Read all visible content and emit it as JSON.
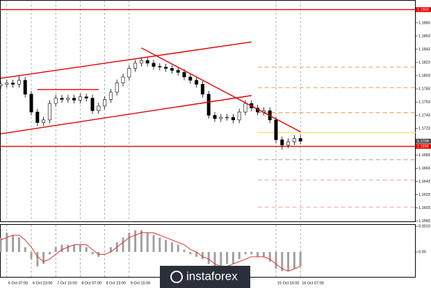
{
  "chart_data": {
    "type": "candlestick",
    "categories": [
      null,
      "6 Oct 07:00",
      null,
      null,
      null,
      "6 Oct 23:00",
      null,
      null,
      null,
      "7 Oct 15:00",
      null,
      null,
      null,
      "8 Oct 07:00",
      null,
      null,
      null,
      "8 Oct 23:00",
      null,
      null,
      null,
      "9 Oct 15:00",
      null,
      null,
      null,
      null,
      null,
      null,
      null,
      null,
      null,
      null,
      null,
      null,
      null,
      null,
      null,
      null,
      null,
      null,
      null,
      null,
      null,
      null,
      null,
      "15 Oct 15:00",
      null,
      null,
      null,
      "16 Oct 07:00"
    ],
    "open": [
      1.1788,
      1.179,
      1.1792,
      1.179,
      1.1796,
      1.1775,
      1.1748,
      1.1732,
      1.1736,
      1.1761,
      1.1769,
      1.1767,
      1.1769,
      1.1766,
      1.1771,
      1.1769,
      1.175,
      1.1757,
      1.1767,
      1.1778,
      1.1792,
      1.1801,
      1.1814,
      1.1822,
      1.1826,
      1.1822,
      1.1817,
      1.1816,
      1.1814,
      1.1811,
      1.1808,
      1.1801,
      1.1796,
      1.179,
      1.1775,
      1.1743,
      1.1738,
      1.174,
      1.174,
      1.1736,
      1.1748,
      1.1761,
      1.1754,
      1.1748,
      1.175,
      1.1736,
      1.1706,
      1.1698,
      1.1703,
      1.1708
    ],
    "high": [
      1.1795,
      1.1797,
      1.1797,
      1.1804,
      1.1801,
      1.178,
      1.1753,
      1.1741,
      1.1766,
      1.1774,
      1.1774,
      1.1774,
      1.1774,
      1.1776,
      1.1776,
      1.1774,
      1.1762,
      1.1772,
      1.1783,
      1.1797,
      1.1806,
      1.1819,
      1.1827,
      1.1831,
      1.1831,
      1.1827,
      1.1822,
      1.1821,
      1.1819,
      1.1816,
      1.1813,
      1.1806,
      1.1801,
      1.1795,
      1.178,
      1.1748,
      1.1745,
      1.1745,
      1.1745,
      1.1753,
      1.1766,
      1.1766,
      1.1759,
      1.1755,
      1.1755,
      1.1741,
      1.1711,
      1.1708,
      1.1713,
      1.1713
    ],
    "low": [
      1.1783,
      1.1785,
      1.1785,
      1.1785,
      1.177,
      1.1743,
      1.1727,
      1.1727,
      1.1731,
      1.1756,
      1.1762,
      1.1762,
      1.1761,
      1.1761,
      1.1764,
      1.1745,
      1.1745,
      1.1752,
      1.1762,
      1.1773,
      1.1787,
      1.1796,
      1.1809,
      1.1817,
      1.1817,
      1.1812,
      1.1811,
      1.1809,
      1.1806,
      1.1803,
      1.1796,
      1.1791,
      1.1785,
      1.177,
      1.1738,
      1.1733,
      1.1733,
      1.1735,
      1.1731,
      1.1731,
      1.1743,
      1.1749,
      1.1743,
      1.1743,
      1.1731,
      1.1701,
      1.1691,
      1.1693,
      1.1698,
      1.1699
    ],
    "close": [
      1.179,
      1.1792,
      1.179,
      1.1796,
      1.1775,
      1.1748,
      1.1732,
      1.1736,
      1.1761,
      1.1769,
      1.1767,
      1.1769,
      1.1766,
      1.1771,
      1.1769,
      1.175,
      1.1757,
      1.1767,
      1.1778,
      1.1792,
      1.1801,
      1.1814,
      1.1822,
      1.1826,
      1.1822,
      1.1817,
      1.1816,
      1.1814,
      1.1811,
      1.1808,
      1.1801,
      1.1796,
      1.179,
      1.1775,
      1.1743,
      1.1738,
      1.174,
      1.174,
      1.1736,
      1.1748,
      1.1761,
      1.1754,
      1.1748,
      1.175,
      1.1736,
      1.1706,
      1.1698,
      1.1703,
      1.1708,
      1.1704
    ],
    "ylim": [
      1.1582,
      1.1917
    ],
    "yticks": [
      1.1883,
      1.1863,
      1.1843,
      1.1823,
      1.1803,
      1.1783,
      1.1763,
      1.1743,
      1.1723,
      1.1683,
      1.1663,
      1.1643,
      1.1623,
      1.1603,
      1.1583
    ],
    "grid": true,
    "levels": [
      {
        "value": 1.1903,
        "color": "#e00000"
      },
      {
        "value": 1.1696,
        "color": "#e00000"
      }
    ],
    "current_price": 1.1704,
    "trendlines": [
      {
        "color": "#e00000",
        "x": [
          0,
          41
        ],
        "y": [
          1.1799,
          1.1854
        ]
      },
      {
        "color": "#e00000",
        "x": [
          0,
          41
        ],
        "y": [
          1.1715,
          1.1773
        ]
      },
      {
        "color": "#e00000",
        "x": [
          23,
          49
        ],
        "y": [
          1.1845,
          1.1718
        ]
      },
      {
        "color": "#e00000",
        "x": [
          6,
          16
        ],
        "y": [
          1.1782,
          1.1782
        ]
      }
    ],
    "pivot_levels": [
      {
        "value": 1.1816,
        "color": "#f4a460"
      },
      {
        "value": 1.1785,
        "color": "#f4a460"
      },
      {
        "value": 1.1747,
        "color": "#f4a460"
      },
      {
        "value": 1.1717,
        "color": "#f2d640"
      },
      {
        "value": 1.1676,
        "color": "#b0b0b0"
      },
      {
        "value": 1.1645,
        "color": "#e8b4b4"
      },
      {
        "value": 1.1604,
        "color": "#e8b4b4"
      }
    ],
    "pivot_start": 42,
    "oscillator": {
      "histogram": [
        0.0006,
        0.0008,
        0.0007,
        0.0006,
        0.0002,
        -0.0003,
        -0.0006,
        -0.0005,
        -0.0001,
        0.0002,
        0.0003,
        0.0003,
        0.0003,
        0.0003,
        0.0002,
        -0.0001,
        -0.0002,
        0.0,
        0.0002,
        0.0004,
        0.0006,
        0.0008,
        0.0009,
        0.0009,
        0.0008,
        0.0007,
        0.0006,
        0.0005,
        0.0004,
        0.0003,
        0.0001,
        -0.0001,
        -0.0002,
        -0.0003,
        -0.0005,
        -0.0006,
        -0.0006,
        -0.0005,
        -0.0005,
        -0.0003,
        -0.0001,
        -0.0001,
        -0.0002,
        -0.0002,
        -0.0004,
        -0.0007,
        -0.0008,
        -0.0008,
        -0.0007,
        -0.0006
      ],
      "histogram_color": "#a0a0a0",
      "signal": [
        0.0005,
        0.0006,
        0.0007,
        0.0007,
        0.0005,
        0.0002,
        -0.0002,
        -0.0004,
        -0.0003,
        -0.0001,
        0.0001,
        0.0002,
        0.0003,
        0.0003,
        0.0003,
        0.0001,
        -0.0001,
        -0.0001,
        0.0,
        0.0002,
        0.0004,
        0.0006,
        0.0007,
        0.0008,
        0.0008,
        0.0008,
        0.0007,
        0.0006,
        0.0005,
        0.0004,
        0.0003,
        0.0001,
        0.0,
        -0.0002,
        -0.0003,
        -0.0005,
        -0.0006,
        -0.0006,
        -0.0005,
        -0.0004,
        -0.0003,
        -0.0002,
        -0.0002,
        -0.0002,
        -0.0003,
        -0.0005,
        -0.0007,
        -0.0008,
        -0.0007,
        -0.0006
      ],
      "signal_color": "#e03030",
      "ylim": [
        -0.00104,
        0.00113
      ],
      "yticks": [
        0.00107,
        {
          "value": 0,
          "label": "0.00"
        }
      ]
    },
    "watermark": "instaforex"
  }
}
